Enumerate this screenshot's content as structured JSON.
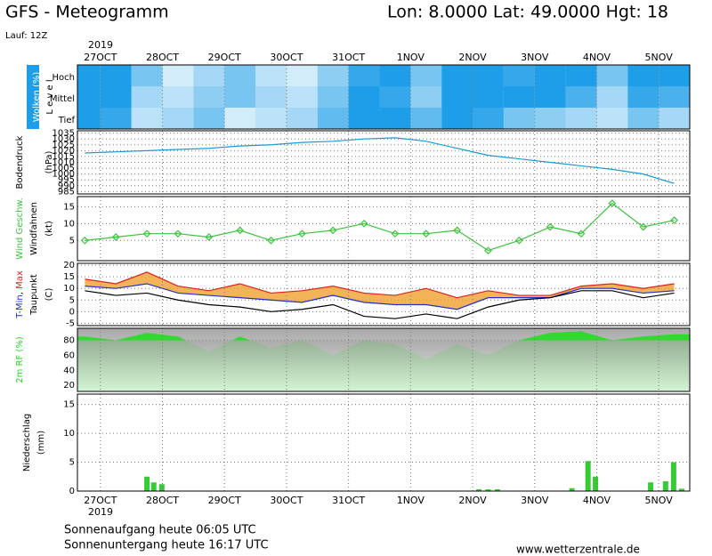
{
  "header": {
    "title": "GFS - Meteogramm",
    "location": "Lon: 8.0000 Lat: 49.0000 Hgt: 18",
    "run": "Lauf: 12Z"
  },
  "x_axis": {
    "year": "2019",
    "xlim": [
      -0.37,
      9.5
    ],
    "xticks": [
      {
        "value": 0,
        "label": "27OCT"
      },
      {
        "value": 1,
        "label": "28OCT"
      },
      {
        "value": 2,
        "label": "29OCT"
      },
      {
        "value": 3,
        "label": "30OCT"
      },
      {
        "value": 4,
        "label": "31OCT"
      },
      {
        "value": 5,
        "label": "1NOV"
      },
      {
        "value": 6,
        "label": "2NOV"
      },
      {
        "value": 7,
        "label": "3NOV"
      },
      {
        "value": 8,
        "label": "4NOV"
      },
      {
        "value": 9,
        "label": "5NOV"
      }
    ]
  },
  "chart_data": [
    {
      "type": "heatmap",
      "ylabel": "Wolken (%)",
      "ylabel2": "L e v e l",
      "color": "#1e9ee8",
      "x": [
        -0.25,
        0.25,
        0.75,
        1.25,
        1.75,
        2.25,
        2.75,
        3.25,
        3.75,
        4.25,
        4.75,
        5.25,
        5.75,
        6.25,
        6.75,
        7.25,
        7.75,
        8.25,
        8.75,
        9.25
      ],
      "series": [
        {
          "name": "Hoch",
          "values": [
            100,
            100,
            60,
            20,
            40,
            60,
            30,
            20,
            50,
            90,
            100,
            60,
            100,
            100,
            90,
            100,
            100,
            60,
            100,
            100
          ]
        },
        {
          "name": "Mittel",
          "values": [
            100,
            100,
            40,
            30,
            50,
            60,
            40,
            30,
            60,
            100,
            90,
            50,
            100,
            100,
            100,
            100,
            80,
            40,
            90,
            80
          ]
        },
        {
          "name": "Tief",
          "values": [
            100,
            90,
            30,
            40,
            60,
            20,
            30,
            40,
            70,
            100,
            100,
            70,
            100,
            90,
            60,
            50,
            40,
            30,
            60,
            40
          ]
        }
      ]
    },
    {
      "type": "line",
      "ylabel": "Bodendruck",
      "unit": "(hPa)",
      "color": "#1a9ad6",
      "x": [
        -0.25,
        0.25,
        0.75,
        1.25,
        1.75,
        2.25,
        2.75,
        3.25,
        3.75,
        4.25,
        4.75,
        5.25,
        5.75,
        6.25,
        6.75,
        7.25,
        7.75,
        8.25,
        8.75,
        9.25
      ],
      "values": [
        1018,
        1019,
        1020,
        1021,
        1022,
        1024,
        1025,
        1027,
        1028,
        1030,
        1031,
        1028,
        1022,
        1016,
        1013,
        1010,
        1007,
        1004,
        1000,
        992
      ],
      "ylim": [
        983,
        1037
      ],
      "yticks": [
        985,
        990,
        995,
        1000,
        1005,
        1010,
        1015,
        1020,
        1025,
        1030,
        1035
      ]
    },
    {
      "type": "line",
      "ylabel": "Wind Geschw.",
      "ylabel2": "Windfahnen",
      "unit": "(kt)",
      "color": "#3cc33c",
      "marker": "diamond",
      "x": [
        -0.25,
        0.25,
        0.75,
        1.25,
        1.75,
        2.25,
        2.75,
        3.25,
        3.75,
        4.25,
        4.75,
        5.25,
        5.75,
        6.25,
        6.75,
        7.25,
        7.75,
        8.25,
        8.75,
        9.25
      ],
      "values": [
        5,
        6,
        7,
        7,
        6,
        8,
        5,
        7,
        8,
        10,
        7,
        7,
        8,
        2,
        5,
        9,
        7,
        16,
        9,
        11
      ],
      "ylim": [
        -1,
        18
      ],
      "yticks": [
        5,
        10,
        15
      ]
    },
    {
      "type": "band",
      "ylabel_parts": [
        {
          "text": "T-Min",
          "color": "#2030d0"
        },
        {
          "text": ", ",
          "color": "#000000"
        },
        {
          "text": "Max",
          "color": "#e02020"
        }
      ],
      "ylabel2": "Taupunkt",
      "unit": "(C)",
      "fill": "#f0a030",
      "x": [
        -0.25,
        0.25,
        0.75,
        1.25,
        1.75,
        2.25,
        2.75,
        3.25,
        3.75,
        4.25,
        4.75,
        5.25,
        5.75,
        6.25,
        6.75,
        7.25,
        7.75,
        8.25,
        8.75,
        9.25
      ],
      "series": [
        {
          "name": "T-Min",
          "color": "#2030d0",
          "values": [
            11,
            10,
            12,
            8,
            7,
            6,
            5,
            4,
            7,
            4,
            3,
            3,
            1,
            6,
            6,
            6,
            10,
            10,
            8,
            9
          ]
        },
        {
          "name": "Max",
          "color": "#e02020",
          "values": [
            14,
            12,
            17,
            11,
            9,
            12,
            8,
            9,
            11,
            8,
            7,
            10,
            6,
            9,
            7,
            7,
            11,
            12,
            10,
            12
          ]
        },
        {
          "name": "Taupunkt",
          "color": "#000000",
          "values": [
            9,
            7,
            8,
            5,
            3,
            2,
            0,
            1,
            3,
            -2,
            -3,
            -1,
            -3,
            2,
            5,
            6,
            9,
            9,
            6,
            8
          ]
        }
      ],
      "ylim": [
        -6,
        20.8
      ],
      "yticks": [
        -5,
        0,
        5,
        10,
        15,
        20
      ]
    },
    {
      "type": "area",
      "ylabel": "2m RF (%)",
      "color": "#22dd22",
      "x": [
        -0.25,
        0.25,
        0.75,
        1.25,
        1.75,
        2.25,
        2.75,
        3.25,
        3.75,
        4.25,
        4.75,
        5.25,
        5.75,
        6.25,
        6.75,
        7.25,
        7.75,
        8.25,
        8.75,
        9.25
      ],
      "values": [
        85,
        80,
        90,
        85,
        65,
        85,
        70,
        80,
        60,
        80,
        75,
        55,
        75,
        60,
        80,
        90,
        92,
        80,
        85,
        88
      ],
      "ylim": [
        12,
        96
      ],
      "yticks": [
        20,
        40,
        60,
        80
      ]
    },
    {
      "type": "bar",
      "ylabel": "Niederschlag",
      "unit": "(mm)",
      "color": "#33cc33",
      "x": [
        0.75,
        0.86,
        0.99,
        6.1,
        6.25,
        6.4,
        7.6,
        7.86,
        7.98,
        8.87,
        9.11,
        9.24,
        9.37
      ],
      "values": [
        2.5,
        1.5,
        1.2,
        0.3,
        0.3,
        0.3,
        0.5,
        5.2,
        2.5,
        1.5,
        1.7,
        5,
        0.4
      ],
      "ylim": [
        0,
        16.8
      ],
      "yticks": [
        0,
        5,
        10,
        15
      ]
    }
  ],
  "footer": {
    "sunrise": "Sonnenaufgang heute 06:05 UTC",
    "sunset": "Sonnenuntergang heute 16:17 UTC",
    "source": "www.wetterzentrale.de"
  }
}
